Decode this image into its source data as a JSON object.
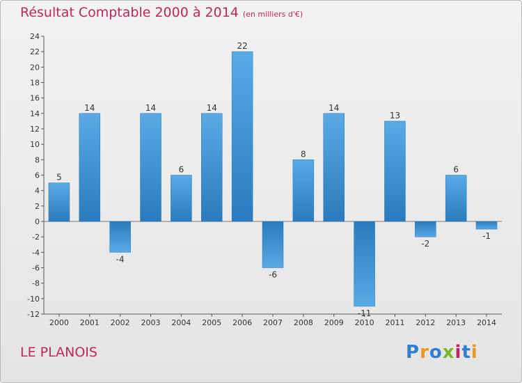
{
  "chart_data": {
    "type": "bar",
    "title": "Résultat Comptable 2000 à 2014",
    "subtitle": "(en milliers d'€)",
    "categories": [
      "2000",
      "2001",
      "2002",
      "2003",
      "2004",
      "2005",
      "2006",
      "2007",
      "2008",
      "2009",
      "2010",
      "2011",
      "2012",
      "2013",
      "2014"
    ],
    "values": [
      5,
      14,
      -4,
      14,
      6,
      14,
      22,
      -6,
      8,
      14,
      -11,
      13,
      -2,
      6,
      -1
    ],
    "ylim": [
      -12,
      24
    ],
    "yticks": [
      -12,
      -10,
      -8,
      -6,
      -4,
      -2,
      0,
      2,
      4,
      6,
      8,
      10,
      12,
      14,
      16,
      18,
      20,
      22,
      24
    ],
    "xlabel": "",
    "ylabel": "",
    "grid": false,
    "bar_color": "#3d8fd0"
  },
  "footer": {
    "commune": "LE PLANOIS",
    "logo": [
      "P",
      "r",
      "o",
      "x",
      "i",
      "t",
      "i"
    ],
    "logo_colors": [
      "#2f7fce",
      "#e89a1a",
      "#2f7fce",
      "#78b828",
      "#c0265f",
      "#2f7fce",
      "#e89a1a"
    ]
  }
}
